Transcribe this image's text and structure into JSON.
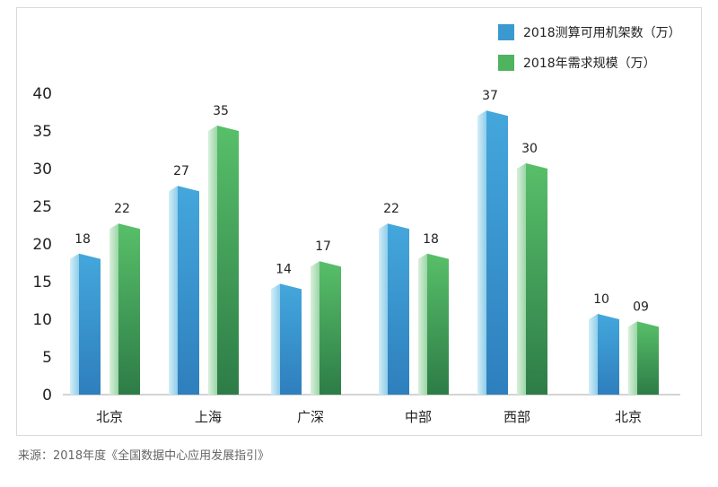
{
  "chart_data": {
    "type": "bar",
    "categories": [
      "北京",
      "上海",
      "广深",
      "中部",
      "西部",
      "北京"
    ],
    "series": [
      {
        "name": "2018测算可用机架数（万）",
        "values": [
          18,
          27,
          14,
          22,
          37,
          10
        ],
        "labels": [
          "18",
          "27",
          "14",
          "22",
          "37",
          "10"
        ],
        "color": "#3a9ad0"
      },
      {
        "name": "2018年需求规模（万）",
        "values": [
          22,
          35,
          17,
          18,
          30,
          9
        ],
        "labels": [
          "22",
          "35",
          "17",
          "18",
          "30",
          "09"
        ],
        "color": "#4fb35f"
      }
    ],
    "yticks": [
      "0",
      "5",
      "10",
      "15",
      "20",
      "25",
      "30",
      "35",
      "40"
    ],
    "ylim": [
      0,
      40
    ],
    "grid": false,
    "legend": "top-right"
  },
  "source": "来源：2018年度《全国数据中心应用发展指引》"
}
